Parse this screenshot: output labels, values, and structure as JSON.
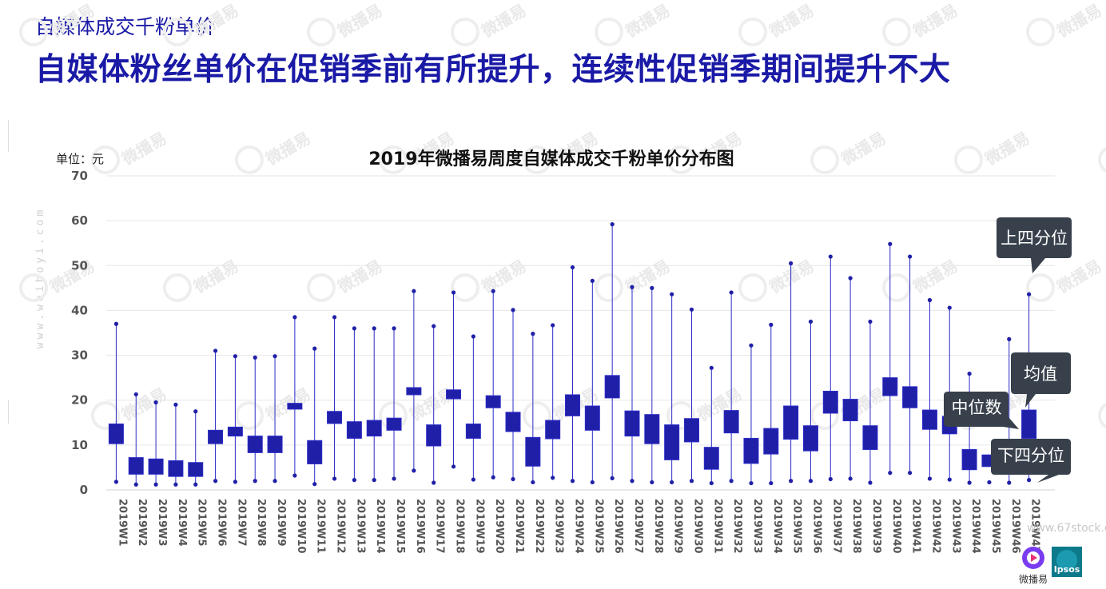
{
  "header": {
    "section_title": "自媒体成交千粉单价",
    "headline": "自媒体粉丝单价在促销季前有所提升，连续性促销季期间提升不大"
  },
  "watermark": {
    "text": "微播易",
    "side_text": "www.weiboyi.com",
    "stock_text": "www.67stock.com"
  },
  "chart_data": {
    "type": "boxplot",
    "title": "2019年微播易周度自媒体成交千粉单价分布图",
    "unit_label": "单位：元",
    "ylim": [
      0,
      70
    ],
    "yticks": [
      0,
      10,
      20,
      30,
      40,
      50,
      60,
      70
    ],
    "grid": true,
    "categories": [
      "2019W1",
      "2019W2",
      "2019W3",
      "2019W4",
      "2019W5",
      "2019W6",
      "2019W7",
      "2019W8",
      "2019W9",
      "2019W10",
      "2019W11",
      "2019W12",
      "2019W13",
      "2019W14",
      "2019W15",
      "2019W16",
      "2019W17",
      "2019W18",
      "2019W19",
      "2019W20",
      "2019W21",
      "2019W22",
      "2019W23",
      "2019W24",
      "2019W25",
      "2019W26",
      "2019W27",
      "2019W28",
      "2019W29",
      "2019W30",
      "2019W31",
      "2019W32",
      "2019W33",
      "2019W34",
      "2019W35",
      "2019W36",
      "2019W37",
      "2019W38",
      "2019W39",
      "2019W40",
      "2019W41",
      "2019W42",
      "2019W43",
      "2019W44",
      "2019W45",
      "2019W46",
      "2019W47"
    ],
    "max": [
      37,
      21.3,
      19.5,
      19,
      17.5,
      31,
      29.8,
      29.5,
      29.8,
      38.5,
      31.5,
      38.5,
      36,
      36,
      36,
      44.3,
      36.5,
      44,
      34.2,
      44.3,
      40.1,
      34.8,
      36.7,
      49.6,
      46.6,
      59.2,
      45.2,
      45,
      43.6,
      40.2,
      27.2,
      44,
      32.2,
      36.8,
      50.5,
      37.5,
      52,
      47.2,
      37.5,
      54.8,
      52,
      42.3,
      40.6,
      25.9,
      null,
      33.6,
      43.6
    ],
    "q3": [
      14.7,
      7.2,
      6.9,
      6.5,
      6.1,
      13.3,
      14,
      12,
      12,
      19.3,
      11,
      17.5,
      15.2,
      15.5,
      16,
      22.8,
      14.5,
      22.3,
      14.7,
      21,
      17.3,
      11.7,
      15.5,
      21.2,
      18.7,
      25.5,
      17.6,
      16.8,
      14.5,
      15.9,
      9.5,
      17.7,
      11.5,
      13.7,
      18.7,
      14.3,
      22,
      20.2,
      14.3,
      25,
      23,
      17.8,
      16.4,
      9,
      7.8,
      null,
      17.8
    ],
    "q1": [
      10.3,
      3.5,
      3.5,
      3,
      3,
      10.3,
      12,
      8.3,
      8.3,
      18,
      5.8,
      14.8,
      11.5,
      12,
      13.3,
      21.2,
      9.8,
      20.3,
      11.5,
      18.3,
      13,
      5.3,
      11.4,
      16.5,
      13.3,
      20.5,
      12,
      10.3,
      6.7,
      10.7,
      4.6,
      12.7,
      5.9,
      8,
      11.3,
      8.7,
      17.1,
      15.4,
      9,
      21,
      18.3,
      13.5,
      12.5,
      4.5,
      5.2,
      null,
      11.5
    ],
    "min": [
      1.8,
      1.2,
      1.2,
      1.2,
      1.2,
      2,
      1.8,
      2,
      2,
      3.2,
      1.3,
      2.5,
      2.2,
      2.2,
      2.5,
      4.3,
      1.6,
      5.2,
      2.3,
      2.8,
      2.4,
      1.7,
      2.7,
      2,
      1.7,
      2.6,
      2,
      1.7,
      1.7,
      2,
      1.5,
      2,
      1.5,
      1.5,
      2,
      2,
      2.4,
      2.5,
      1.6,
      3.8,
      3.8,
      2.5,
      2.3,
      1.6,
      1.7,
      1.6,
      2.2
    ]
  },
  "callouts": {
    "upper_quartile": "上四分位",
    "mean": "均值",
    "median": "中位数",
    "lower_quartile": "下四分位"
  },
  "logos": {
    "weiboyi_label": "微播易",
    "ipsos_label": "Ipsos"
  },
  "colors": {
    "box_fill": "#1f1fa8",
    "box_stroke": "#2c2cc8",
    "whisker": "#2c2cc8",
    "title_blue": "#1a1aa6",
    "callout_bg": "#37404b",
    "grid": "#e6e6e6"
  }
}
